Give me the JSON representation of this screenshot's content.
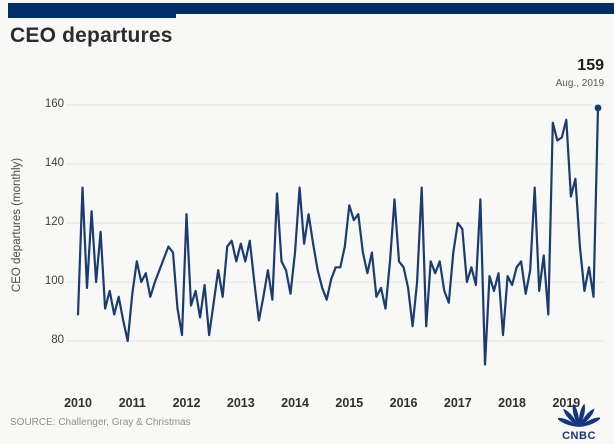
{
  "header": {
    "title": "CEO departures"
  },
  "annotation": {
    "value": "159",
    "label": "Aug., 2019"
  },
  "chart_data": {
    "type": "line",
    "title": "CEO departures",
    "ylabel": "CEO departures (monthly)",
    "xlabel": "",
    "frequency": "monthly",
    "x_start": "Jan 2010",
    "x_end": "Aug 2019",
    "x_tick_labels": [
      "2010",
      "2011",
      "2012",
      "2013",
      "2014",
      "2015",
      "2016",
      "2017",
      "2018",
      "2019"
    ],
    "y_ticks": [
      160,
      140,
      120,
      100,
      80
    ],
    "ylim": [
      68,
      168
    ],
    "grid": "horizontal",
    "legend_position": "none",
    "line_color": "#1a3c70",
    "last_point_marker": true,
    "peak_annotation": {
      "text": "159",
      "sub": "Aug., 2019",
      "point": "Aug 2019"
    },
    "series": [
      {
        "name": "CEO departures (monthly)",
        "values": [
          89,
          132,
          98,
          124,
          100,
          117,
          91,
          97,
          89,
          95,
          87,
          80,
          96,
          107,
          100,
          103,
          95,
          100,
          104,
          108,
          112,
          110,
          91,
          82,
          123,
          92,
          97,
          88,
          99,
          82,
          93,
          104,
          95,
          112,
          114,
          107,
          113,
          107,
          114,
          100,
          87,
          95,
          104,
          94,
          130,
          107,
          104,
          96,
          110,
          132,
          113,
          123,
          113,
          104,
          98,
          94,
          101,
          105,
          105,
          112,
          126,
          121,
          123,
          110,
          103,
          110,
          95,
          98,
          91,
          107,
          128,
          107,
          105,
          98,
          85,
          100,
          132,
          85,
          107,
          103,
          107,
          97,
          93,
          110,
          120,
          118,
          100,
          105,
          99,
          128,
          72,
          102,
          97,
          103,
          82,
          102,
          99,
          105,
          107,
          96,
          104,
          132,
          97,
          109,
          89,
          154,
          148,
          149,
          155,
          129,
          135,
          112,
          97,
          105,
          95,
          159
        ]
      }
    ]
  },
  "source": {
    "text": "SOURCE: Challenger, Gray & Christmas"
  },
  "logo": {
    "text": "CNBC"
  },
  "colors": {
    "brand_bar": "#002d66",
    "line": "#1a3c70",
    "grid": "#e4e4e4",
    "background": "#f8f8f6",
    "logo": "#16357f"
  }
}
